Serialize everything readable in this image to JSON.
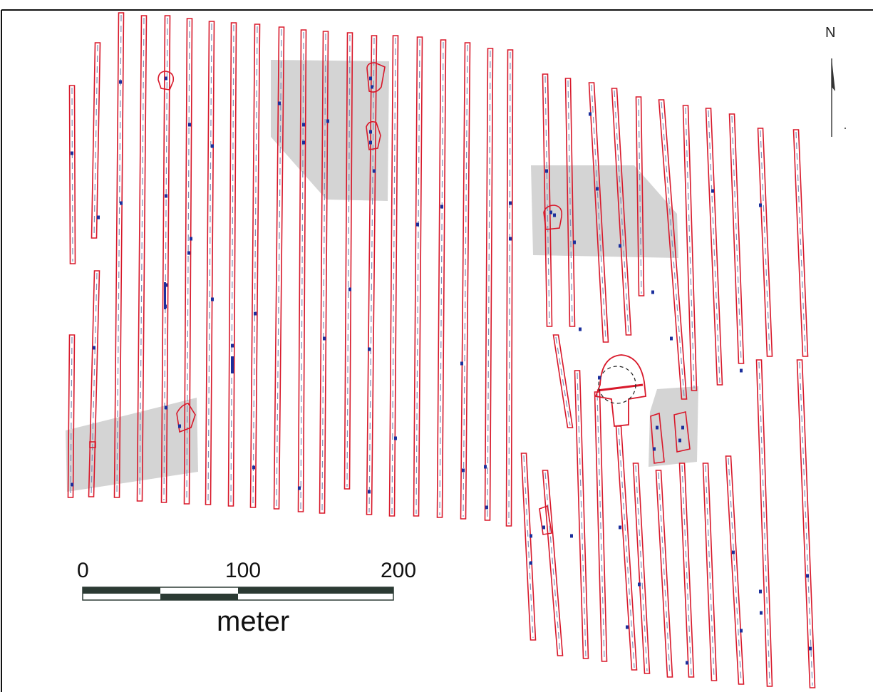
{
  "map": {
    "north_label": "N",
    "scale_bar": {
      "tick_labels": [
        "0",
        "100",
        "200"
      ],
      "unit": "meter",
      "length_value": 200
    },
    "colors": {
      "transect_outline": "#d8182a",
      "transect_centerline": "#7f8fb6",
      "detection": "#1b2f9c",
      "survey_block": "#cfcfcf",
      "scale_dark": "#2b3a33",
      "frame": "#111111"
    },
    "legend_items": []
  }
}
